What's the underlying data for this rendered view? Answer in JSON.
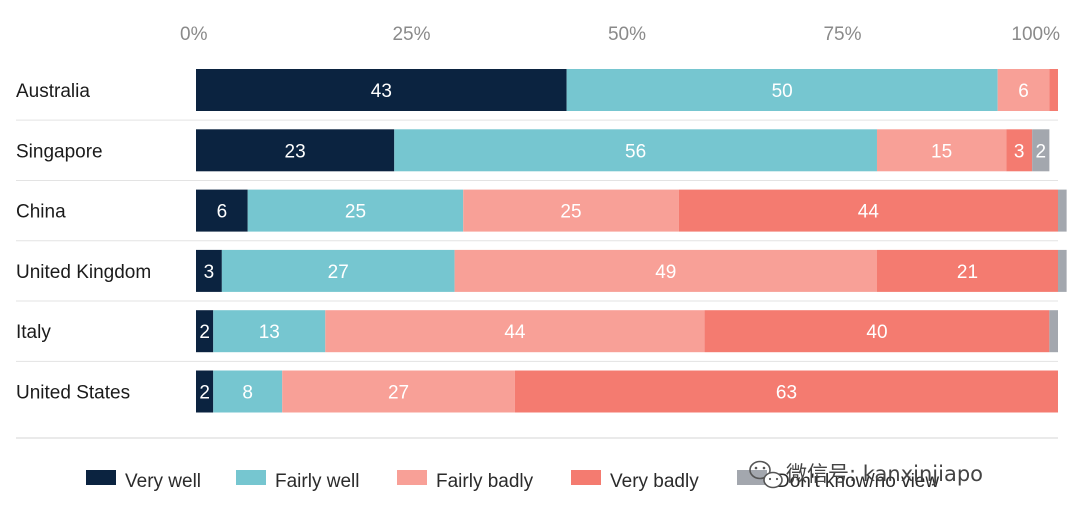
{
  "chart_data": {
    "type": "bar",
    "orientation": "horizontal",
    "stacked": true,
    "title": "",
    "xlabel": "",
    "ylabel": "",
    "xlim": [
      0,
      100
    ],
    "x_ticks": [
      "0%",
      "25%",
      "50%",
      "75%",
      "100%"
    ],
    "x_tick_values": [
      0,
      25,
      50,
      75,
      100
    ],
    "grid": false,
    "legend_position": "bottom",
    "categories": [
      "Australia",
      "Singapore",
      "China",
      "United Kingdom",
      "Italy",
      "United States"
    ],
    "series": [
      {
        "name": "Very well",
        "color": "#0b2340",
        "values": [
          43,
          23,
          6,
          3,
          2,
          2
        ],
        "labels": [
          "43",
          "23",
          "6",
          "3",
          "2",
          "2"
        ]
      },
      {
        "name": "Fairly well",
        "color": "#76c6d0",
        "values": [
          50,
          56,
          25,
          27,
          13,
          8
        ],
        "labels": [
          "50",
          "56",
          "25",
          "27",
          "13",
          "8"
        ]
      },
      {
        "name": "Fairly badly",
        "color": "#f8a097",
        "values": [
          6,
          15,
          25,
          49,
          44,
          27
        ],
        "labels": [
          "6",
          "15",
          "25",
          "49",
          "44",
          "27"
        ]
      },
      {
        "name": "Very badly",
        "color": "#f47b70",
        "values": [
          1,
          3,
          44,
          21,
          40,
          63
        ],
        "labels": [
          "",
          "3",
          "44",
          "21",
          "40",
          "63"
        ]
      },
      {
        "name": "Don't know/no view",
        "color": "#a3a7ae",
        "values": [
          0,
          2,
          1,
          1,
          1,
          0
        ],
        "labels": [
          "",
          "2",
          "",
          "",
          "",
          ""
        ]
      }
    ]
  },
  "watermark": {
    "text": "微信号: kanxinjiapo"
  }
}
